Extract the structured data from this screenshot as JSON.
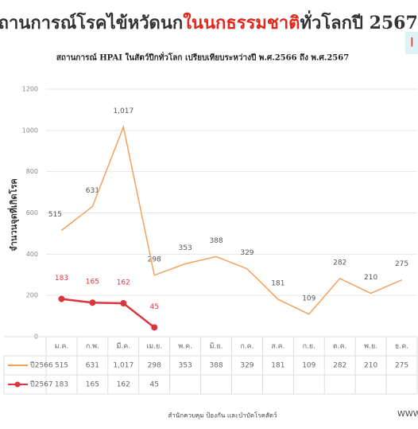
{
  "chart_data": {
    "type": "line",
    "title_parts": [
      "สถานการณ์โรคไข้หวัดนก",
      "ในนกธรรมชาติ",
      "ทั่วโลกปี 2567"
    ],
    "subtitle": "สถานการณ์ HPAI ในสัตว์ปีกทั่วโลก เปรียบเทียบระหว่างปี พ.ศ.2566 ถึง พ.ศ.2567",
    "y_label": "จำนวนจุดที่เกิดโรค",
    "categories": [
      "ม.ค.",
      "ก.พ.",
      "มี.ค.",
      "เม.ย.",
      "พ.ค.",
      "มิ.ย.",
      "ก.ค.",
      "ส.ค.",
      "ก.ย.",
      "ต.ค.",
      "พ.ย.",
      "ธ.ค."
    ],
    "series": [
      {
        "name": "ปี2566",
        "color": "#f5a05a",
        "values": [
          515,
          631,
          1017,
          298,
          353,
          388,
          329,
          181,
          109,
          282,
          210,
          275
        ],
        "value_labels": [
          "515",
          "631",
          "1,017",
          "298",
          "353",
          "388",
          "329",
          "181",
          "109",
          "282",
          "210",
          "275"
        ]
      },
      {
        "name": "ปี2567",
        "color": "#d9363e",
        "values": [
          183,
          165,
          162,
          45,
          null,
          null,
          null,
          null,
          null,
          null,
          null,
          null
        ]
      }
    ],
    "ylim": [
      0,
      1200
    ],
    "yticks": [
      0,
      200,
      400,
      600,
      800,
      1000,
      1200
    ],
    "grid": true,
    "footer": "สำนักควบคุม ป้องกัน และบำบัดโรคสัตว์",
    "website": "WWW.",
    "corner_text": "I"
  }
}
